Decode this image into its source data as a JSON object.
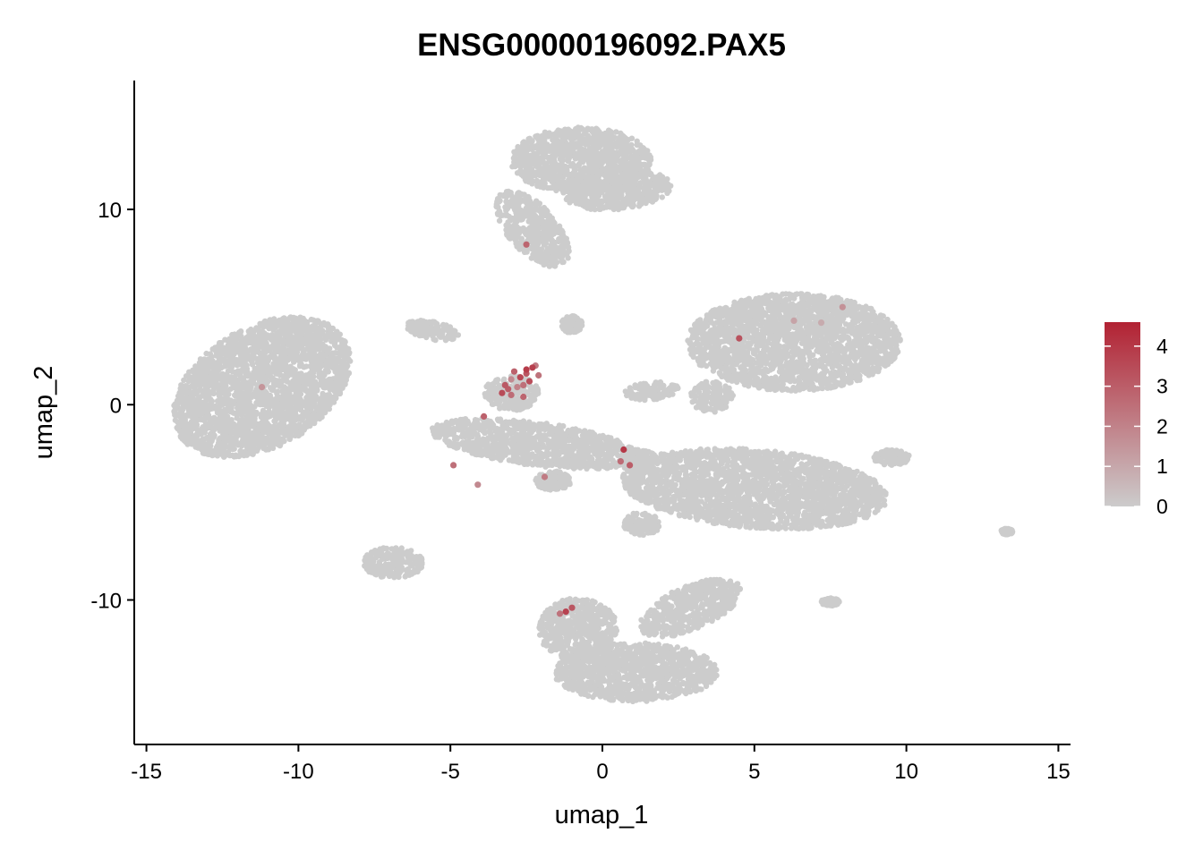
{
  "chart_data": {
    "type": "scatter",
    "title": "ENSG00000196092.PAX5",
    "xlabel": "umap_1",
    "ylabel": "umap_2",
    "xlim": [
      -15.4,
      15.4
    ],
    "ylim": [
      -17.4,
      16.6
    ],
    "x_ticks": [
      -15,
      -10,
      -5,
      0,
      5,
      10,
      15
    ],
    "x_tick_labels": [
      "-15",
      "-10",
      "-5",
      "0",
      "5",
      "10",
      "15"
    ],
    "y_ticks": [
      -10,
      0,
      10
    ],
    "y_tick_labels": [
      "-10",
      "0",
      "10"
    ],
    "grid": false,
    "legend_position": "right",
    "colorbar": {
      "min": 0,
      "max": 4.6,
      "ticks": [
        0,
        1,
        2,
        3,
        4
      ],
      "tick_labels": [
        "0",
        "1",
        "2",
        "3",
        "4"
      ],
      "low_color": "#cccccc",
      "high_color": "#b22233"
    },
    "background_point_color": "#cccccc",
    "clusters": [
      {
        "cx": -11.2,
        "cy": 0.9,
        "rx": 2.5,
        "ry": 3.9,
        "rot": -30
      },
      {
        "cx": -0.7,
        "cy": 12.5,
        "rx": 2.3,
        "ry": 1.7,
        "rot": 0
      },
      {
        "cx": -2.3,
        "cy": 9.0,
        "rx": 0.9,
        "ry": 2.1,
        "rot": 25
      },
      {
        "cx": 0.5,
        "cy": 11.0,
        "rx": 1.8,
        "ry": 1.0,
        "rot": 10
      },
      {
        "cx": 6.3,
        "cy": 3.2,
        "rx": 3.5,
        "ry": 2.5,
        "rot": 0
      },
      {
        "cx": -2.2,
        "cy": -2.0,
        "rx": 3.5,
        "ry": 1.1,
        "rot": -12
      },
      {
        "cx": -3.0,
        "cy": 0.6,
        "rx": 0.9,
        "ry": 0.9,
        "rot": 0
      },
      {
        "cx": 5.0,
        "cy": -4.3,
        "rx": 4.4,
        "ry": 2.0,
        "rot": -8
      },
      {
        "cx": 1.1,
        "cy": -13.7,
        "rx": 2.7,
        "ry": 1.5,
        "rot": 0
      },
      {
        "cx": -0.8,
        "cy": -11.5,
        "rx": 1.3,
        "ry": 1.6,
        "rot": 0
      },
      {
        "cx": 2.9,
        "cy": -10.4,
        "rx": 2.0,
        "ry": 1.0,
        "rot": 40
      },
      {
        "cx": -6.9,
        "cy": -8.1,
        "rx": 1.0,
        "ry": 0.8,
        "rot": 0
      },
      {
        "cx": -5.6,
        "cy": 3.8,
        "rx": 0.9,
        "ry": 0.45,
        "rot": -20
      },
      {
        "cx": -1.0,
        "cy": 4.1,
        "rx": 0.35,
        "ry": 0.45,
        "rot": 0
      },
      {
        "cx": 1.6,
        "cy": 0.7,
        "rx": 0.9,
        "ry": 0.45,
        "rot": 10
      },
      {
        "cx": 3.6,
        "cy": 0.4,
        "rx": 0.7,
        "ry": 0.8,
        "rot": 0
      },
      {
        "cx": 1.2,
        "cy": -2.9,
        "rx": 0.6,
        "ry": 0.6,
        "rot": 0
      },
      {
        "cx": -1.6,
        "cy": -3.9,
        "rx": 0.6,
        "ry": 0.5,
        "rot": 0
      },
      {
        "cx": 1.3,
        "cy": -6.1,
        "rx": 0.6,
        "ry": 0.6,
        "rot": 0
      },
      {
        "cx": 9.5,
        "cy": -2.7,
        "rx": 0.6,
        "ry": 0.4,
        "rot": 0
      },
      {
        "cx": 13.3,
        "cy": -6.5,
        "rx": 0.2,
        "ry": 0.15,
        "rot": 0
      },
      {
        "cx": 7.5,
        "cy": -10.1,
        "rx": 0.3,
        "ry": 0.2,
        "rot": 0
      }
    ],
    "expressing_points": [
      {
        "x": -2.3,
        "y": 1.9,
        "v": 3.8
      },
      {
        "x": -2.5,
        "y": 1.6,
        "v": 3.2
      },
      {
        "x": -2.7,
        "y": 1.4,
        "v": 3.6
      },
      {
        "x": -2.9,
        "y": 1.7,
        "v": 2.9
      },
      {
        "x": -2.4,
        "y": 1.2,
        "v": 3.4
      },
      {
        "x": -2.6,
        "y": 1.0,
        "v": 2.5
      },
      {
        "x": -3.2,
        "y": 1.0,
        "v": 3.1
      },
      {
        "x": -2.2,
        "y": 2.0,
        "v": 2.2
      },
      {
        "x": -2.8,
        "y": 0.9,
        "v": 2.0
      },
      {
        "x": -3.3,
        "y": 0.6,
        "v": 3.5
      },
      {
        "x": -3.0,
        "y": 0.5,
        "v": 2.6
      },
      {
        "x": -2.6,
        "y": 0.4,
        "v": 2.8
      },
      {
        "x": -3.1,
        "y": 0.8,
        "v": 3.0
      },
      {
        "x": -2.5,
        "y": 1.8,
        "v": 3.9
      },
      {
        "x": -2.1,
        "y": 1.5,
        "v": 2.4
      },
      {
        "x": -3.0,
        "y": 1.3,
        "v": 1.8
      },
      {
        "x": -11.2,
        "y": 0.9,
        "v": 1.5
      },
      {
        "x": 4.5,
        "y": 3.4,
        "v": 3.3
      },
      {
        "x": 7.9,
        "y": 5.0,
        "v": 1.6
      },
      {
        "x": 7.2,
        "y": 4.2,
        "v": 0.9
      },
      {
        "x": 6.3,
        "y": 4.3,
        "v": 1.1
      },
      {
        "x": 0.7,
        "y": -2.3,
        "v": 4.0
      },
      {
        "x": 0.9,
        "y": -3.1,
        "v": 3.0
      },
      {
        "x": 0.6,
        "y": -2.9,
        "v": 2.6
      },
      {
        "x": -2.5,
        "y": 8.2,
        "v": 2.8
      },
      {
        "x": -1.2,
        "y": -10.6,
        "v": 3.7
      },
      {
        "x": -1.0,
        "y": -10.4,
        "v": 3.2
      },
      {
        "x": -1.4,
        "y": -10.7,
        "v": 2.4
      },
      {
        "x": -4.1,
        "y": -4.1,
        "v": 1.8
      },
      {
        "x": -4.9,
        "y": -3.1,
        "v": 2.5
      },
      {
        "x": -1.9,
        "y": -3.7,
        "v": 2.2
      },
      {
        "x": -3.9,
        "y": -0.6,
        "v": 2.9
      }
    ]
  }
}
